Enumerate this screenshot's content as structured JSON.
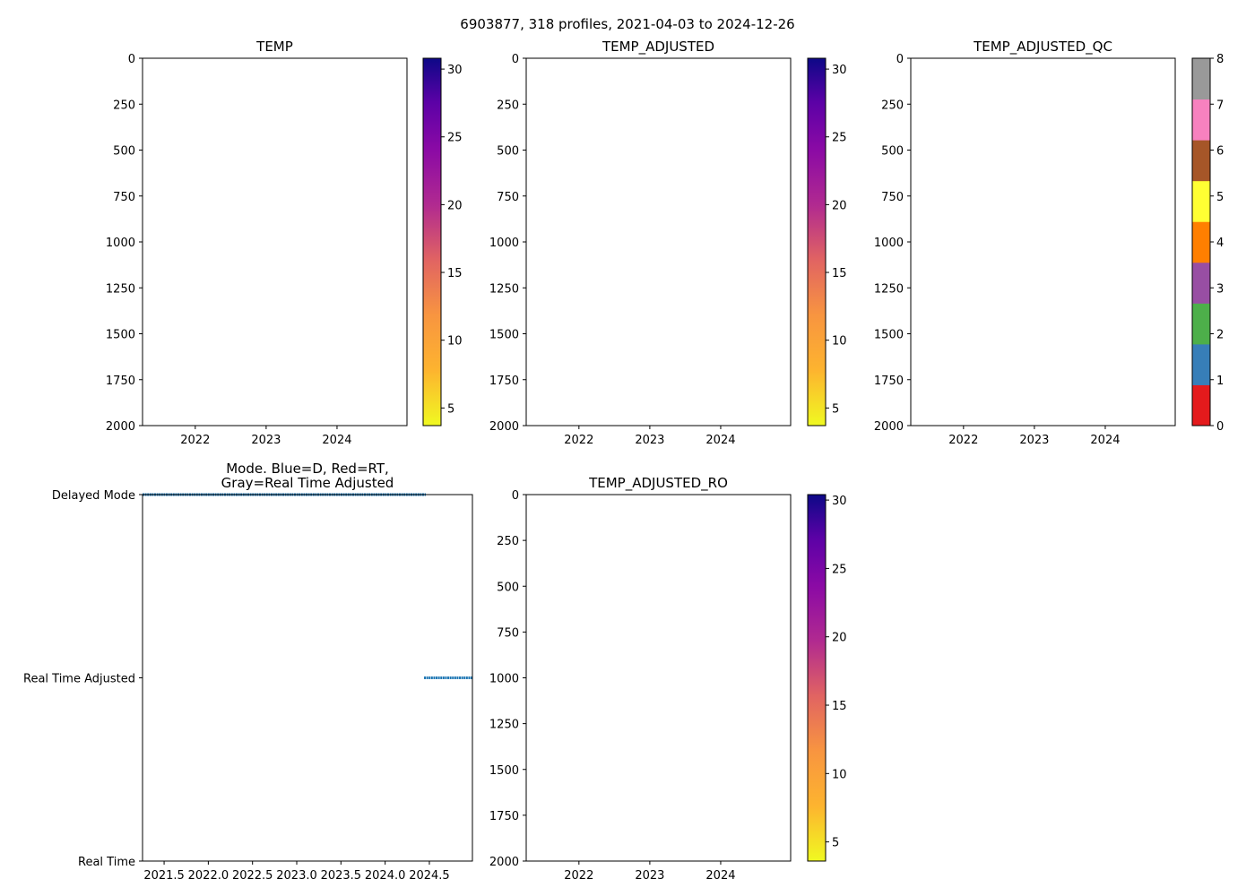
{
  "suptitle": "6903877, 318 profiles, 2021-04-03 to 2024-12-26",
  "chart_data": [
    {
      "type": "heatmap",
      "title": "TEMP",
      "xlim": [
        2021.256,
        2024.987
      ],
      "xticks": [
        2022,
        2023,
        2024
      ],
      "xtick_labels": [
        "2022",
        "2023",
        "2024"
      ],
      "ylim": [
        2000,
        0
      ],
      "yticks": [
        0,
        250,
        500,
        750,
        1000,
        1250,
        1500,
        1750,
        2000
      ],
      "ytick_labels": [
        "0",
        "250",
        "500",
        "750",
        "1000",
        "1250",
        "1500",
        "1750",
        "2000"
      ],
      "colorbar": {
        "cmap": "plasma_r",
        "range": [
          3.7,
          30.8
        ],
        "ticks": [
          5,
          10,
          15,
          20,
          25,
          30
        ],
        "tick_labels": [
          "5",
          "10",
          "15",
          "20",
          "25",
          "30"
        ]
      },
      "values": []
    },
    {
      "type": "heatmap",
      "title": "TEMP_ADJUSTED",
      "xlim": [
        2021.256,
        2024.987
      ],
      "xticks": [
        2022,
        2023,
        2024
      ],
      "xtick_labels": [
        "2022",
        "2023",
        "2024"
      ],
      "ylim": [
        2000,
        0
      ],
      "yticks": [
        0,
        250,
        500,
        750,
        1000,
        1250,
        1500,
        1750,
        2000
      ],
      "ytick_labels": [
        "0",
        "250",
        "500",
        "750",
        "1000",
        "1250",
        "1500",
        "1750",
        "2000"
      ],
      "colorbar": {
        "cmap": "plasma_r",
        "range": [
          3.7,
          30.8
        ],
        "ticks": [
          5,
          10,
          15,
          20,
          25,
          30
        ],
        "tick_labels": [
          "5",
          "10",
          "15",
          "20",
          "25",
          "30"
        ]
      },
      "values": []
    },
    {
      "type": "heatmap",
      "title": "TEMP_ADJUSTED_QC",
      "xlim": [
        2021.256,
        2024.987
      ],
      "xticks": [
        2022,
        2023,
        2024
      ],
      "xtick_labels": [
        "2022",
        "2023",
        "2024"
      ],
      "ylim": [
        2000,
        0
      ],
      "yticks": [
        0,
        250,
        500,
        750,
        1000,
        1250,
        1500,
        1750,
        2000
      ],
      "ytick_labels": [
        "0",
        "250",
        "500",
        "750",
        "1000",
        "1250",
        "1500",
        "1750",
        "2000"
      ],
      "colorbar": {
        "cmap": "Set1",
        "range": [
          0,
          8
        ],
        "segments": [
          "#e41a1c",
          "#377eb8",
          "#4daf4a",
          "#984ea3",
          "#ff7f00",
          "#ffff33",
          "#a65628",
          "#f781bf",
          "#999999"
        ],
        "ticks": [
          0,
          1,
          2,
          3,
          4,
          5,
          6,
          7,
          8
        ],
        "tick_labels": [
          "0",
          "1",
          "2",
          "3",
          "4",
          "5",
          "6",
          "7",
          "8"
        ]
      },
      "values": []
    },
    {
      "type": "scatter",
      "title": "Mode. Blue=D, Red=RT,\nGray=Real Time Adjusted",
      "xlim": [
        2021.256,
        2024.987
      ],
      "xticks": [
        2021.5,
        2022.0,
        2022.5,
        2023.0,
        2023.5,
        2024.0,
        2024.5
      ],
      "xtick_labels": [
        "2021.5",
        "2022.0",
        "2022.5",
        "2023.0",
        "2023.5",
        "2024.0",
        "2024.5"
      ],
      "ylim": [
        0,
        2
      ],
      "yticks": [
        2,
        1,
        0
      ],
      "ytick_labels": [
        "Delayed Mode",
        "Real Time Adjusted",
        "Real Time"
      ],
      "color": "#1f77b4",
      "series": [
        {
          "name": "Delayed Mode",
          "y": 2,
          "x_range": [
            2021.256,
            2024.46
          ]
        },
        {
          "name": "Real Time Adjusted",
          "y": 1,
          "x_range": [
            2024.44,
            2024.987
          ]
        }
      ]
    },
    {
      "type": "heatmap",
      "title": "TEMP_ADJUSTED_RO",
      "xlim": [
        2021.256,
        2024.987
      ],
      "xticks": [
        2022,
        2023,
        2024
      ],
      "xtick_labels": [
        "2022",
        "2023",
        "2024"
      ],
      "ylim": [
        2000,
        0
      ],
      "yticks": [
        0,
        250,
        500,
        750,
        1000,
        1250,
        1500,
        1750,
        2000
      ],
      "ytick_labels": [
        "0",
        "250",
        "500",
        "750",
        "1000",
        "1250",
        "1500",
        "1750",
        "2000"
      ],
      "colorbar": {
        "cmap": "plasma_r",
        "range": [
          3.6,
          30.4
        ],
        "ticks": [
          5,
          10,
          15,
          20,
          25,
          30
        ],
        "tick_labels": [
          "5",
          "10",
          "15",
          "20",
          "25",
          "30"
        ]
      },
      "values": []
    }
  ]
}
